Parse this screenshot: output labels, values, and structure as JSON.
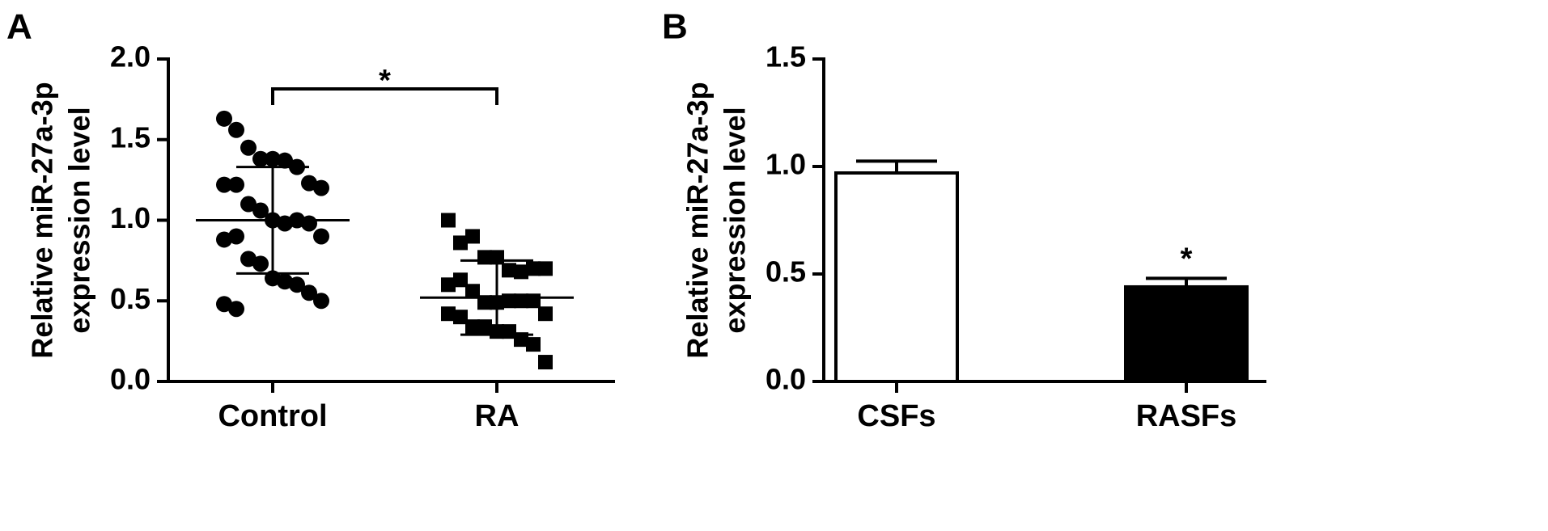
{
  "chart_data": [
    {
      "type": "dotplot",
      "panel": "A",
      "ylabel": [
        "Relative miR-27a-3p",
        "expression level"
      ],
      "categories": [
        "Control",
        "RA"
      ],
      "groups": [
        {
          "marker": "circle",
          "color": "#000000",
          "mean": 1.0,
          "sd": 0.33,
          "values": [
            1.63,
            1.56,
            1.45,
            1.38,
            1.38,
            1.37,
            1.33,
            1.23,
            1.2,
            1.22,
            1.22,
            1.1,
            1.06,
            1.0,
            0.98,
            1.0,
            0.98,
            0.9,
            0.88,
            0.9,
            0.76,
            0.73,
            0.64,
            0.62,
            0.6,
            0.55,
            0.5,
            0.48,
            0.45
          ]
        },
        {
          "marker": "square",
          "color": "#000000",
          "mean": 0.52,
          "sd": 0.23,
          "values": [
            1.0,
            0.86,
            0.9,
            0.77,
            0.77,
            0.69,
            0.68,
            0.7,
            0.7,
            0.6,
            0.63,
            0.56,
            0.49,
            0.49,
            0.5,
            0.5,
            0.5,
            0.42,
            0.42,
            0.4,
            0.34,
            0.34,
            0.31,
            0.31,
            0.26,
            0.23,
            0.12
          ]
        }
      ],
      "significance": "*",
      "ylim": [
        0,
        2.0
      ],
      "yticks": [
        {
          "value": 0,
          "label": "0.0"
        },
        {
          "value": 0.5,
          "label": "0.5"
        },
        {
          "value": 1,
          "label": "1.0"
        },
        {
          "value": 1.5,
          "label": "1.5"
        },
        {
          "value": 2,
          "label": "2.0"
        }
      ]
    },
    {
      "type": "bar",
      "panel": "B",
      "ylabel": [
        "Relative miR-27a-3p",
        "expression level"
      ],
      "categories": [
        "CSFs",
        "RASFs"
      ],
      "values": [
        0.97,
        0.44
      ],
      "errors": [
        0.055,
        0.04
      ],
      "colors": [
        "#ffffff",
        "#000000"
      ],
      "significance": "*",
      "ylim": [
        0,
        1.5
      ],
      "yticks": [
        {
          "value": 0,
          "label": "0.0"
        },
        0.5,
        {
          "value": 1,
          "label": "1.0"
        },
        1.5
      ]
    }
  ]
}
